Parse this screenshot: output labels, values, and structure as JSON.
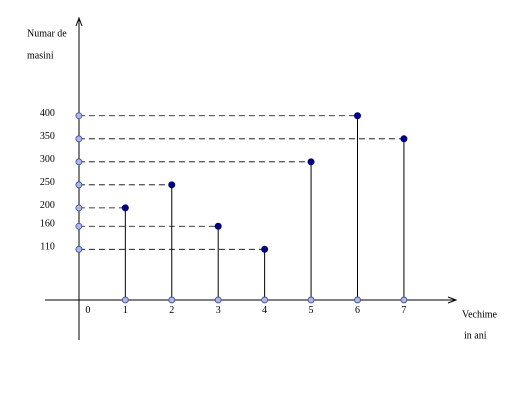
{
  "chart_data": {
    "type": "stem",
    "y_label": [
      "Numar de",
      "masini"
    ],
    "x_label": [
      "Vechime",
      "in  ani"
    ],
    "x": [
      1,
      2,
      3,
      4,
      5,
      6,
      7
    ],
    "values": [
      200,
      250,
      160,
      110,
      300,
      400,
      350
    ],
    "color": "#000080",
    "xlim": [
      -0.73,
      8.1
    ],
    "ylim": [
      -87,
      608
    ],
    "xticks": [
      0,
      1,
      2,
      3,
      4,
      5,
      6,
      7
    ],
    "yticks": [
      110,
      160,
      200,
      250,
      300,
      350,
      400
    ]
  }
}
